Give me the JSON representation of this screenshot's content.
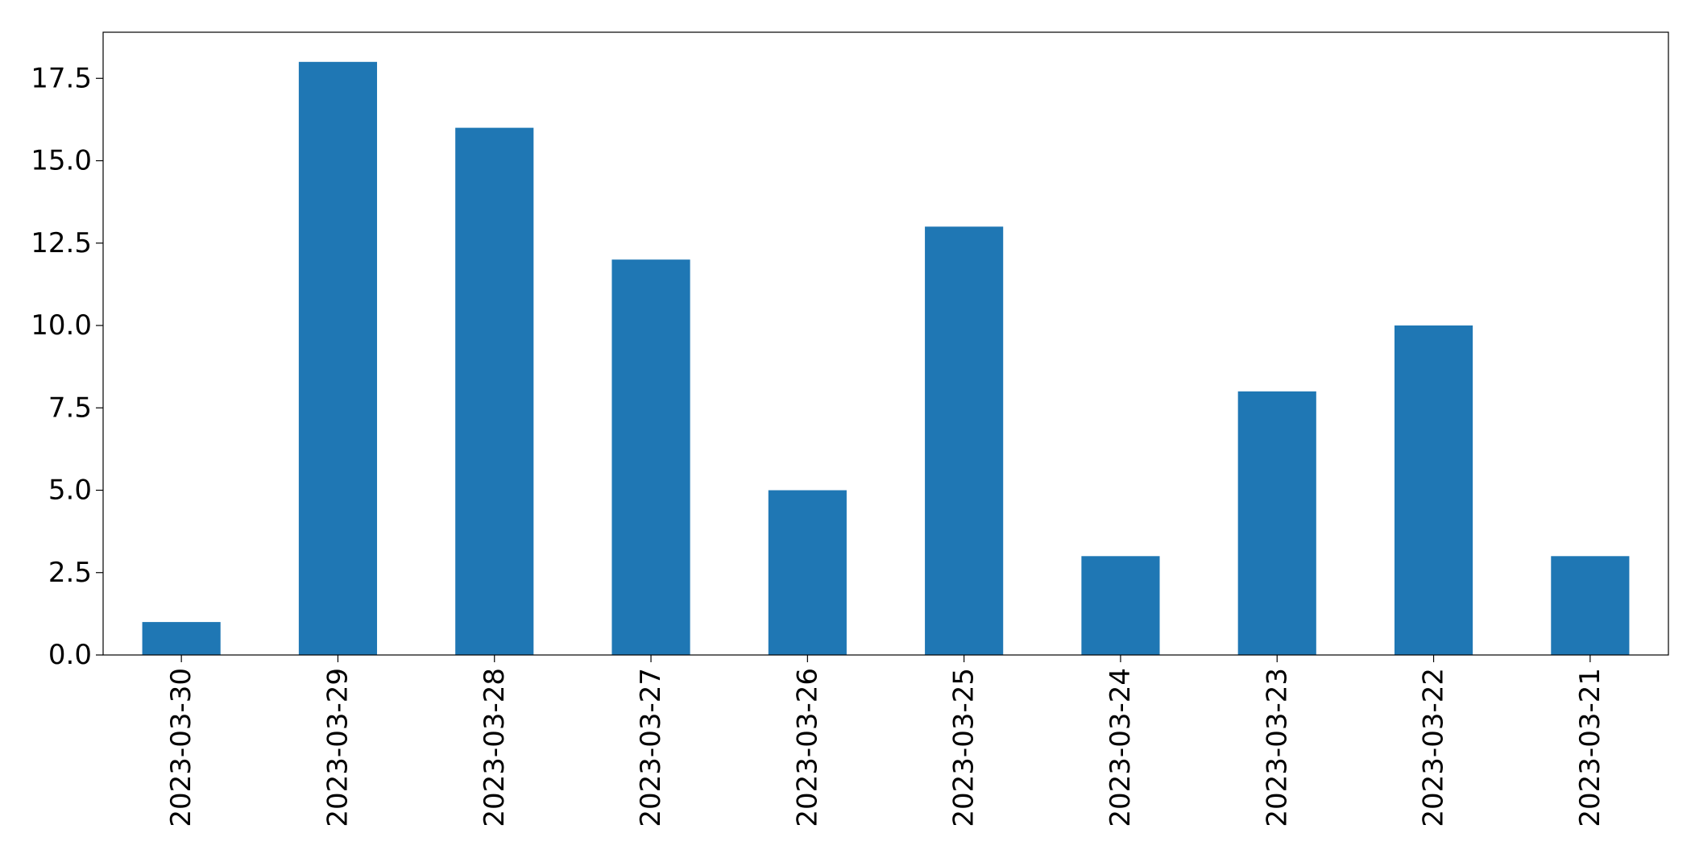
{
  "chart_data": {
    "type": "bar",
    "title": "",
    "xlabel": "",
    "ylabel": "",
    "categories": [
      "2023-03-30",
      "2023-03-29",
      "2023-03-28",
      "2023-03-27",
      "2023-03-26",
      "2023-03-25",
      "2023-03-24",
      "2023-03-23",
      "2023-03-22",
      "2023-03-21"
    ],
    "values": [
      1,
      18,
      16,
      12,
      5,
      13,
      3,
      8,
      10,
      3
    ],
    "ylim": [
      0,
      18.9
    ],
    "yticks": [
      0.0,
      2.5,
      5.0,
      7.5,
      10.0,
      12.5,
      15.0,
      17.5
    ],
    "ytick_labels": [
      "0.0",
      "2.5",
      "5.0",
      "7.5",
      "10.0",
      "12.5",
      "15.0",
      "17.5"
    ],
    "bar_color": "#1f77b4",
    "grid": false,
    "legend": "none",
    "x_tick_rotation": "vertical"
  }
}
